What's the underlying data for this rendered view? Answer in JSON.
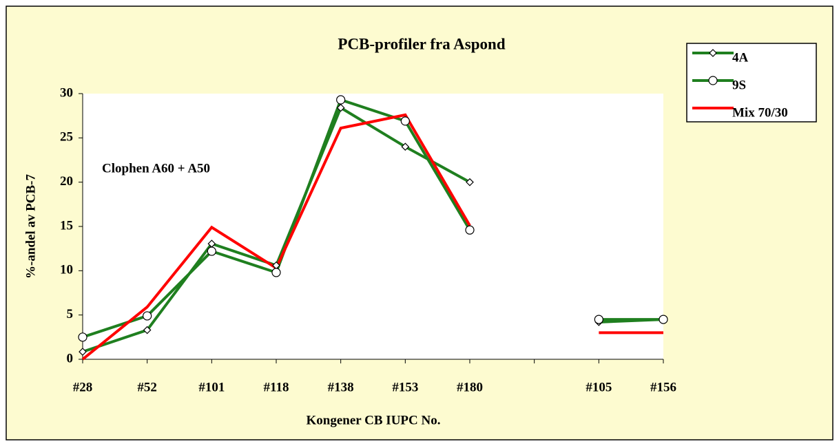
{
  "chart_data": {
    "type": "line",
    "title": "PCB-profiler fra Aspond",
    "annotation": "Clophen A60 + A50",
    "x_label": "Kongener CB IUPC No.",
    "y_label": "%-andel av PCB-7",
    "categories": [
      "#28",
      "#52",
      "#101",
      "#118",
      "#138",
      "#153",
      "#180",
      null,
      "#105",
      "#156"
    ],
    "series": [
      {
        "name": "4A",
        "color": "#1f7f1f",
        "marker": "diamond",
        "values": [
          0.85,
          3.3,
          13.05,
          10.6,
          28.4,
          24.0,
          20.0,
          null,
          4.2,
          4.5
        ]
      },
      {
        "name": "9S",
        "color": "#1f7f1f",
        "marker": "circle",
        "values": [
          2.5,
          4.9,
          12.2,
          9.8,
          29.3,
          26.9,
          14.6,
          null,
          4.5,
          4.5
        ]
      },
      {
        "name": "Mix 70/30",
        "color": "#ff0000",
        "marker": null,
        "values": [
          0,
          5.9,
          14.9,
          10.3,
          26.1,
          27.6,
          15.1,
          null,
          3.0,
          3.0
        ]
      }
    ],
    "ylim": [
      0,
      30
    ],
    "yticks": [
      0,
      5,
      10,
      15,
      20,
      25,
      30
    ],
    "grid": false,
    "legend": "upper right"
  }
}
